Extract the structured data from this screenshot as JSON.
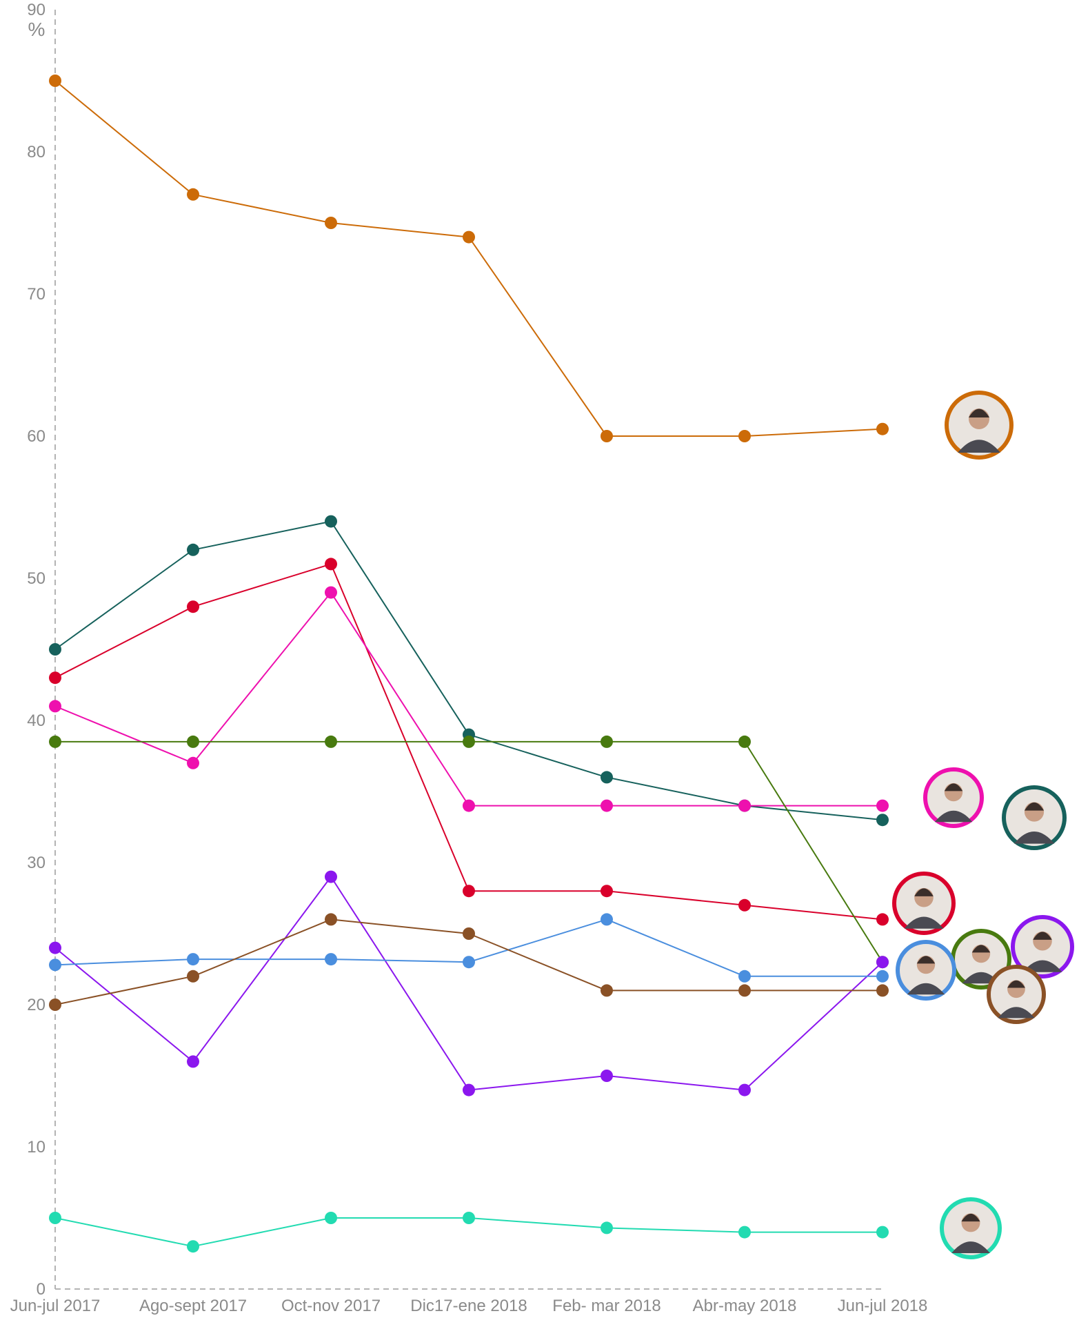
{
  "chart_data": {
    "type": "line",
    "title": "",
    "xlabel": "",
    "ylabel": "%",
    "ylim": [
      0,
      90
    ],
    "yticks": [
      0,
      10,
      20,
      30,
      40,
      50,
      60,
      70,
      80,
      90
    ],
    "categories": [
      "Jun-jul 2017",
      "Ago-sept 2017",
      "Oct-nov 2017",
      "Dic17-ene 2018",
      "Feb- mar 2018",
      "Abr-may 2018",
      "Jun-jul 2018"
    ],
    "grid": false,
    "legend": "portrait badges at the right end of each series",
    "series": [
      {
        "color": "#cc6b08",
        "values": [
          85,
          77,
          75,
          74,
          60,
          60,
          60.5
        ],
        "icon": "portrait-icon"
      },
      {
        "color": "#16615c",
        "values": [
          45,
          52,
          54,
          39,
          36,
          34,
          33
        ],
        "icon": "portrait-icon"
      },
      {
        "color": "#d9002b",
        "values": [
          43,
          48,
          51,
          28,
          28,
          27,
          26
        ],
        "icon": "portrait-icon"
      },
      {
        "color": "#ee10ae",
        "values": [
          41,
          37,
          49,
          34,
          34,
          34,
          34
        ],
        "icon": "portrait-icon"
      },
      {
        "color": "#487a0f",
        "values": [
          38.5,
          38.5,
          38.5,
          38.5,
          38.5,
          38.5,
          23
        ],
        "icon": "portrait-icon"
      },
      {
        "color": "#8b17ee",
        "values": [
          24,
          16,
          29,
          14,
          15,
          14,
          23
        ],
        "icon": "portrait-icon"
      },
      {
        "color": "#4a8ede",
        "values": [
          22.8,
          23.2,
          23.2,
          23,
          26,
          22,
          22
        ],
        "icon": "portrait-icon"
      },
      {
        "color": "#8a5126",
        "values": [
          20,
          22,
          26,
          25,
          21,
          21,
          21
        ],
        "icon": "portrait-icon"
      },
      {
        "color": "#22dbb1",
        "values": [
          5,
          3,
          5,
          5,
          4.3,
          4,
          4
        ],
        "icon": "portrait-icon"
      }
    ]
  }
}
